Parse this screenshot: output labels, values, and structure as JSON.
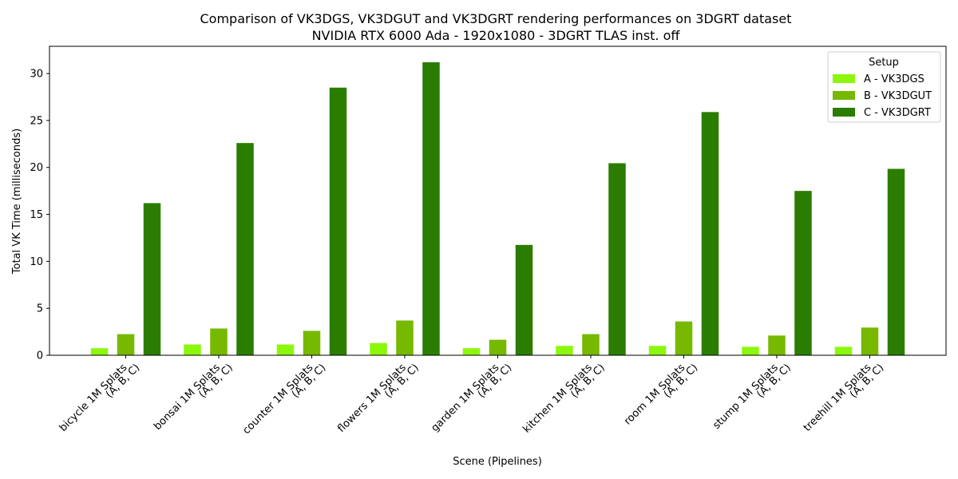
{
  "chart_data": {
    "type": "bar",
    "title_line1": "Comparison of VK3DGS, VK3DGUT and VK3DGRT rendering performances on 3DGRT dataset",
    "title_line2": "NVIDIA RTX 6000 Ada - 1920x1080 - 3DGRT TLAS inst. off",
    "xlabel": "Scene (Pipelines)",
    "ylabel": "Total VK Time (milliseconds)",
    "ylim": [
      0,
      32.9
    ],
    "yticks": [
      0,
      5,
      10,
      15,
      20,
      25,
      30
    ],
    "categories": [
      {
        "line1": "bicycle 1M Splats",
        "line2": "(A, B, C)"
      },
      {
        "line1": "bonsai 1M Splats",
        "line2": "(A, B, C)"
      },
      {
        "line1": "counter 1M Splats",
        "line2": "(A, B, C)"
      },
      {
        "line1": "flowers 1M Splats",
        "line2": "(A, B, C)"
      },
      {
        "line1": "garden 1M Splats",
        "line2": "(A, B, C)"
      },
      {
        "line1": "kitchen 1M Splats",
        "line2": "(A, B, C)"
      },
      {
        "line1": "room 1M Splats",
        "line2": "(A, B, C)"
      },
      {
        "line1": "stump 1M Splats",
        "line2": "(A, B, C)"
      },
      {
        "line1": "treehill 1M Splats",
        "line2": "(A, B, C)"
      }
    ],
    "legend_title": "Setup",
    "legend_position": "upper-right",
    "grid": false,
    "series": [
      {
        "name": "A - VK3DGS",
        "color": "#8cf70c",
        "values": [
          0.75,
          1.15,
          1.15,
          1.3,
          0.75,
          1.0,
          1.0,
          0.9,
          0.9
        ]
      },
      {
        "name": "B - VK3DGUT",
        "color": "#76b900",
        "values": [
          2.25,
          2.85,
          2.6,
          3.7,
          1.65,
          2.25,
          3.6,
          2.1,
          2.95
        ]
      },
      {
        "name": "C - VK3DGRT",
        "color": "#2a7d00",
        "values": [
          16.2,
          22.6,
          28.5,
          31.2,
          11.75,
          20.45,
          25.9,
          17.5,
          19.85
        ]
      }
    ]
  }
}
